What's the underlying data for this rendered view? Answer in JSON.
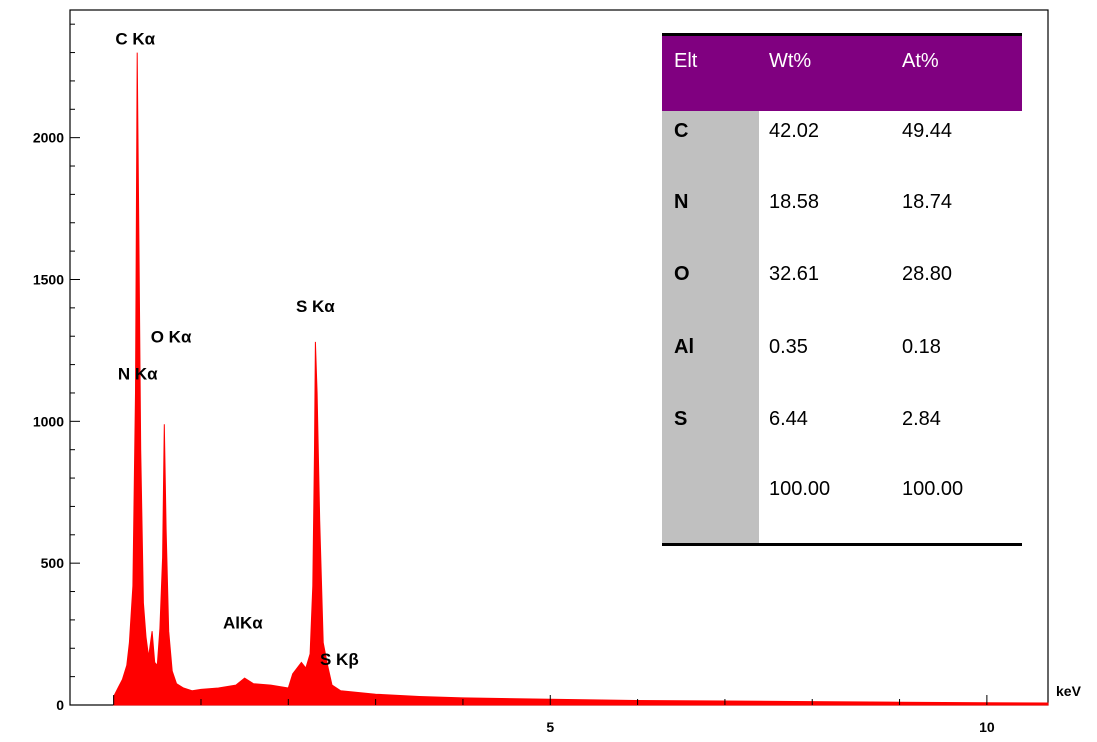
{
  "chart_data": {
    "type": "line",
    "title": "",
    "xlabel": "keV",
    "ylabel": "",
    "xlim": [
      -0.5,
      10.7
    ],
    "ylim": [
      0,
      2450
    ],
    "x_ticks": [
      {
        "value": 5,
        "label": "5"
      },
      {
        "value": 10,
        "label": "10"
      }
    ],
    "y_ticks": [
      {
        "value": 0,
        "label": "0"
      },
      {
        "value": 500,
        "label": "500"
      },
      {
        "value": 1000,
        "label": "1000"
      },
      {
        "value": 1500,
        "label": "1500"
      },
      {
        "value": 2000,
        "label": "2000"
      }
    ],
    "series": [
      {
        "color": "#ff0000",
        "points": [
          [
            0.0,
            30
          ],
          [
            0.05,
            60
          ],
          [
            0.1,
            90
          ],
          [
            0.15,
            140
          ],
          [
            0.18,
            220
          ],
          [
            0.22,
            420
          ],
          [
            0.25,
            1100
          ],
          [
            0.27,
            2300
          ],
          [
            0.29,
            1600
          ],
          [
            0.31,
            900
          ],
          [
            0.34,
            360
          ],
          [
            0.37,
            240
          ],
          [
            0.4,
            170
          ],
          [
            0.44,
            260
          ],
          [
            0.47,
            150
          ],
          [
            0.5,
            140
          ],
          [
            0.53,
            270
          ],
          [
            0.56,
            520
          ],
          [
            0.58,
            990
          ],
          [
            0.6,
            620
          ],
          [
            0.63,
            260
          ],
          [
            0.67,
            120
          ],
          [
            0.72,
            75
          ],
          [
            0.8,
            60
          ],
          [
            0.9,
            50
          ],
          [
            1.0,
            55
          ],
          [
            1.2,
            60
          ],
          [
            1.4,
            70
          ],
          [
            1.5,
            95
          ],
          [
            1.6,
            75
          ],
          [
            1.8,
            70
          ],
          [
            2.0,
            60
          ],
          [
            2.05,
            110
          ],
          [
            2.15,
            150
          ],
          [
            2.2,
            130
          ],
          [
            2.25,
            180
          ],
          [
            2.28,
            420
          ],
          [
            2.3,
            900
          ],
          [
            2.31,
            1280
          ],
          [
            2.33,
            1100
          ],
          [
            2.36,
            650
          ],
          [
            2.4,
            220
          ],
          [
            2.45,
            140
          ],
          [
            2.5,
            70
          ],
          [
            2.6,
            50
          ],
          [
            3.0,
            38
          ],
          [
            3.5,
            30
          ],
          [
            4.0,
            25
          ],
          [
            5.0,
            20
          ],
          [
            6.0,
            16
          ],
          [
            7.0,
            14
          ],
          [
            8.0,
            12
          ],
          [
            9.0,
            10
          ],
          [
            10.0,
            8
          ],
          [
            10.7,
            7
          ]
        ]
      }
    ],
    "annotations": [
      {
        "label": "C Kα",
        "x": 0.27,
        "y": 2300
      },
      {
        "label": "O Kα",
        "x": 0.52,
        "y": 1250
      },
      {
        "label": "N Kα",
        "x": 0.39,
        "y": 1140
      },
      {
        "label": "S Kα",
        "x": 2.31,
        "y": 1350
      },
      {
        "label": "AlKα",
        "x": 1.48,
        "y": 270
      },
      {
        "label": "S Kβ",
        "x": 2.47,
        "y": 170
      }
    ]
  },
  "table": {
    "headers": [
      "Elt",
      "Wt%",
      "At%"
    ],
    "rows": [
      [
        "C",
        "42.02",
        "49.44"
      ],
      [
        "N",
        "18.58",
        "18.74"
      ],
      [
        "O",
        "32.61",
        "28.80"
      ],
      [
        "Al",
        "0.35",
        "0.18"
      ],
      [
        "S",
        "6.44",
        "2.84"
      ],
      [
        "",
        "100.00",
        "100.00"
      ]
    ]
  }
}
